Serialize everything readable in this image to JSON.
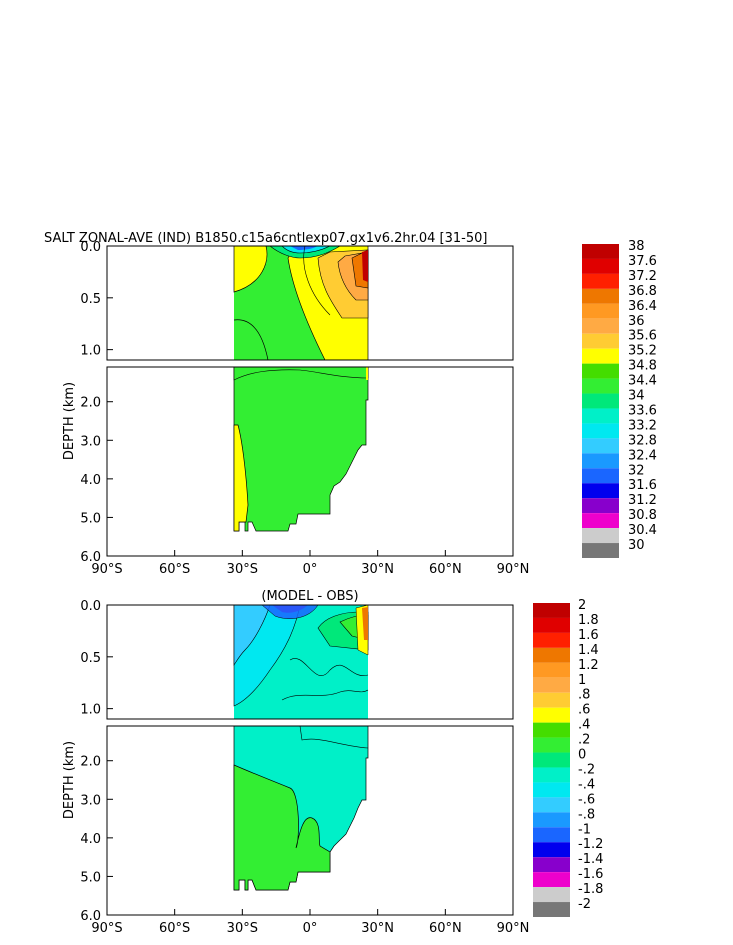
{
  "title": "SALT ZONAL-AVE (IND) B1850.c15a6cntlexp07.gx1v6.2hr.04  [31-50]",
  "subtitle": "(MODEL - OBS)",
  "chart_data": [
    {
      "type": "heatmap",
      "panel": "top",
      "title": "SALT ZONAL-AVE (IND) B1850.c15a6cntlexp07.gx1v6.2hr.04  [31-50]",
      "ylabel": "DEPTH (km)",
      "xticks": [
        "90°S",
        "60°S",
        "30°S",
        "0°",
        "30°N",
        "60°N",
        "90°N"
      ],
      "yticks_upper": [
        "0.0",
        "0.5",
        "1.0"
      ],
      "yticks_lower": [
        "2.0",
        "3.0",
        "4.0",
        "5.0",
        "6.0"
      ],
      "colorbar": {
        "labels": [
          "38",
          "37.6",
          "37.2",
          "36.8",
          "36.4",
          "36",
          "35.6",
          "35.2",
          "34.8",
          "34.4",
          "34",
          "33.6",
          "33.2",
          "32.8",
          "32.4",
          "32",
          "31.6",
          "31.2",
          "30.8",
          "30.4",
          "30"
        ],
        "colors": [
          "#c00000",
          "#e00000",
          "#ff2000",
          "#ee7700",
          "#ff9922",
          "#ffaa44",
          "#ffcc33",
          "#ffff00",
          "#44dd00",
          "#33ee33",
          "#00e87a",
          "#00f0c8",
          "#00e8f0",
          "#33ccff",
          "#1a99ff",
          "#1a66ff",
          "#0000ee",
          "#8800cc",
          "#ee00cc",
          "#cccccc",
          "#777777"
        ]
      }
    },
    {
      "type": "heatmap",
      "panel": "bottom",
      "title": "(MODEL - OBS)",
      "ylabel": "DEPTH (km)",
      "xticks": [
        "90°S",
        "60°S",
        "30°S",
        "0°",
        "30°N",
        "60°N",
        "90°N"
      ],
      "yticks_upper": [
        "0.0",
        "0.5",
        "1.0"
      ],
      "yticks_lower": [
        "2.0",
        "3.0",
        "4.0",
        "5.0",
        "6.0"
      ],
      "colorbar": {
        "labels": [
          "2",
          "1.8",
          "1.6",
          "1.4",
          "1.2",
          "1",
          ".8",
          ".6",
          ".4",
          ".2",
          "0",
          "-.2",
          "-.4",
          "-.6",
          "-.8",
          "-1",
          "-1.2",
          "-1.4",
          "-1.6",
          "-1.8",
          "-2"
        ],
        "colors": [
          "#c00000",
          "#e00000",
          "#ff2000",
          "#ee7700",
          "#ff9922",
          "#ffaa44",
          "#ffcc33",
          "#ffff00",
          "#44dd00",
          "#33ee33",
          "#00e87a",
          "#00f0c8",
          "#00e8f0",
          "#33ccff",
          "#1a99ff",
          "#1a66ff",
          "#0000ee",
          "#8800cc",
          "#ee00cc",
          "#cccccc",
          "#777777"
        ]
      }
    }
  ]
}
